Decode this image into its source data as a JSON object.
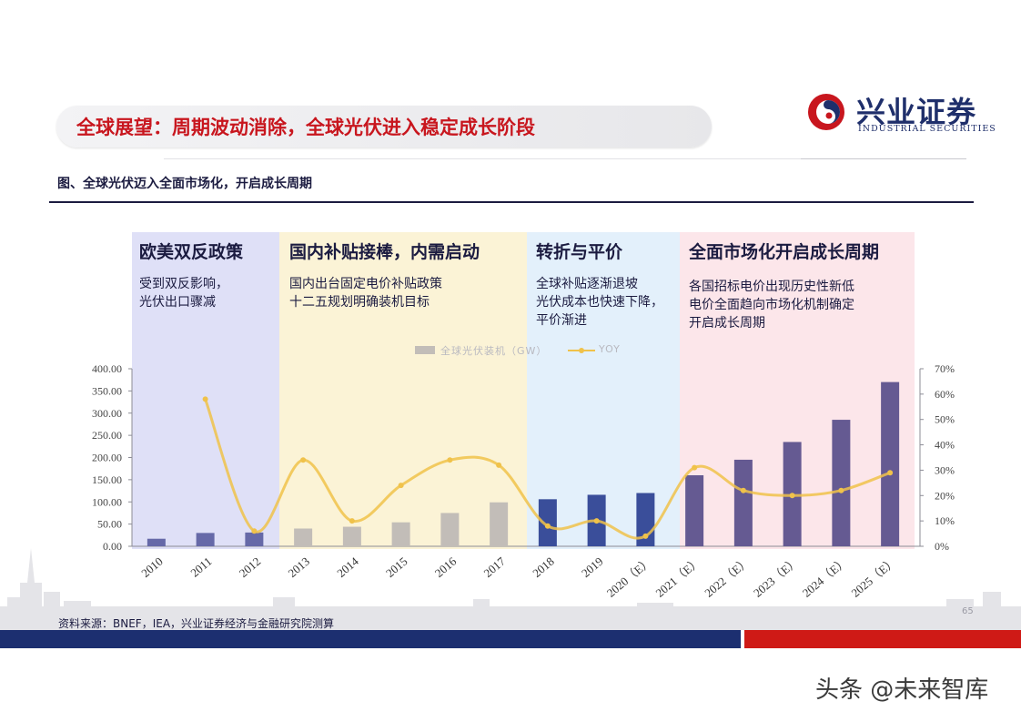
{
  "header": {
    "title": "全球展望：周期波动消除，全球光伏进入稳定成长阶段",
    "logo_cn": "兴业证券",
    "logo_en": "INDUSTRIAL SECURITIES"
  },
  "figure_title": "图、全球光伏迈入全面市场化，开启成长周期",
  "phases": [
    {
      "title": "欧美双反政策",
      "lines": [
        "受到双反影响，",
        "光伏出口骤减"
      ],
      "color": "#dfe0f7"
    },
    {
      "title": "国内补贴接棒，内需启动",
      "lines": [
        "国内出台固定电价补贴政策",
        "十二五规划明确装机目标"
      ],
      "color": "#fbf3d6"
    },
    {
      "title": "转折与平价",
      "lines": [
        "全球补贴逐渐退坡",
        "光伏成本也快速下降，",
        "平价渐进"
      ],
      "color": "#e3f0fb"
    },
    {
      "title": "全面市场化开启成长周期",
      "lines": [
        "各国招标电价出现历史性新低",
        "电价全面趋向市场化机制确定",
        "开启成长周期"
      ],
      "color": "#fce6ea"
    }
  ],
  "legend": {
    "bar_label": "全球光伏装机（GW）",
    "line_label": "YOY"
  },
  "chart_data": {
    "type": "bar",
    "categories": [
      "2010",
      "2011",
      "2012",
      "2013",
      "2014",
      "2015",
      "2016",
      "2017",
      "2018",
      "2019",
      "2020（E）",
      "2021（E）",
      "2022（E）",
      "2023（E）",
      "2024（E）",
      "2025（E）"
    ],
    "series": [
      {
        "name": "全球光伏装机（GW）",
        "type": "bar",
        "axis": "left",
        "values": [
          17,
          30,
          31,
          40,
          44,
          54,
          75,
          99,
          106,
          116,
          120,
          160,
          195,
          235,
          285,
          370
        ],
        "colors": [
          "#6669a8",
          "#6669a8",
          "#6669a8",
          "#c2bdb8",
          "#c2bdb8",
          "#c2bdb8",
          "#c2bdb8",
          "#c2bdb8",
          "#3a4e9a",
          "#3a4e9a",
          "#3a4e9a",
          "#655a92",
          "#655a92",
          "#655a92",
          "#655a92",
          "#655a92"
        ]
      },
      {
        "name": "YOY",
        "type": "line",
        "axis": "right",
        "values": [
          null,
          58,
          6,
          34,
          10,
          24,
          34,
          32,
          8,
          10,
          4,
          31,
          22,
          20,
          22,
          29
        ],
        "color": "#f0c24a"
      }
    ],
    "y_left": {
      "ticks": [
        "0.00",
        "50.00",
        "100.00",
        "150.00",
        "200.00",
        "250.00",
        "300.00",
        "350.00",
        "400.00"
      ],
      "min": 0,
      "max": 400
    },
    "y_right": {
      "ticks": [
        "0%",
        "10%",
        "20%",
        "30%",
        "40%",
        "50%",
        "60%",
        "70%"
      ],
      "min": 0,
      "max": 70
    },
    "legend_position": "top",
    "grid": false
  },
  "footer": {
    "source": "资料来源：BNEF，IEA，兴业证券经济与金融研究院测算",
    "page_number": "65"
  },
  "watermark": "头条 @未来智库"
}
